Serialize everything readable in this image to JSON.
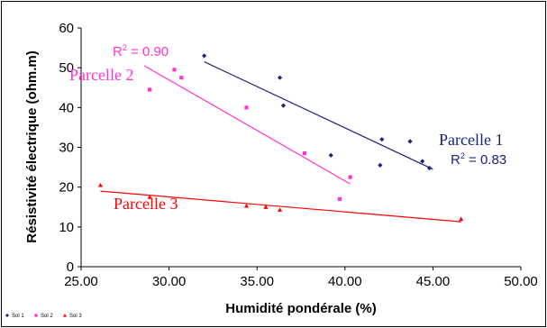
{
  "chart_data": {
    "type": "scatter",
    "xlabel": "Humidité pondérale (%)",
    "ylabel": "Résistivité électrique (ohm.m)",
    "xlim": [
      25,
      50
    ],
    "ylim": [
      0,
      60
    ],
    "x_ticks": [
      "25.00",
      "30.00",
      "35.00",
      "40.00",
      "45.00",
      "50.00"
    ],
    "y_ticks": [
      "0",
      "10",
      "20",
      "30",
      "40",
      "50",
      "60"
    ],
    "grid": false,
    "legend_position": "bottom-left",
    "series": [
      {
        "name": "Sol 1",
        "color": "#1a237e",
        "marker": "diamond",
        "points": [
          [
            32.0,
            53.0
          ],
          [
            36.3,
            47.5
          ],
          [
            36.5,
            40.5
          ],
          [
            39.2,
            28.0
          ],
          [
            42.0,
            25.5
          ],
          [
            42.1,
            32.0
          ],
          [
            43.7,
            31.5
          ],
          [
            44.4,
            26.5
          ],
          [
            44.8,
            24.8
          ]
        ],
        "trendline": {
          "x": [
            32.0,
            45.0
          ],
          "y": [
            51.5,
            24.5
          ]
        }
      },
      {
        "name": "Sol 2",
        "color": "#ff33cc",
        "marker": "square",
        "points": [
          [
            28.9,
            44.5
          ],
          [
            30.3,
            49.5
          ],
          [
            30.7,
            47.5
          ],
          [
            34.4,
            40.0
          ],
          [
            37.7,
            28.5
          ],
          [
            39.7,
            17.0
          ],
          [
            40.3,
            22.5
          ]
        ],
        "trendline": {
          "x": [
            28.6,
            40.3
          ],
          "y": [
            50.5,
            20.8
          ]
        }
      },
      {
        "name": "Sol 3",
        "color": "#ff0000",
        "marker": "triangle",
        "points": [
          [
            26.1,
            20.5
          ],
          [
            28.9,
            17.5
          ],
          [
            34.4,
            15.3
          ],
          [
            35.5,
            15.0
          ],
          [
            36.3,
            14.3
          ],
          [
            46.6,
            12.0
          ]
        ],
        "trendline": {
          "x": [
            26.1,
            46.6
          ],
          "y": [
            19.0,
            11.3
          ]
        }
      }
    ],
    "annotations": [
      {
        "id": "parcelle1",
        "text": "Parcelle 1",
        "color": "#1a237e"
      },
      {
        "id": "parcelle2",
        "text": "Parcelle 2",
        "color": "#ff33cc"
      },
      {
        "id": "parcelle3",
        "text": "Parcelle 3",
        "color": "#ff0000"
      },
      {
        "id": "r2_p1",
        "r_label": "R",
        "exponent": "2",
        "value": " = 0.83",
        "color": "#1a237e"
      },
      {
        "id": "r2_p2",
        "r_label": "R",
        "exponent": "2",
        "value": " = 0.90",
        "color": "#ff33cc"
      }
    ]
  }
}
